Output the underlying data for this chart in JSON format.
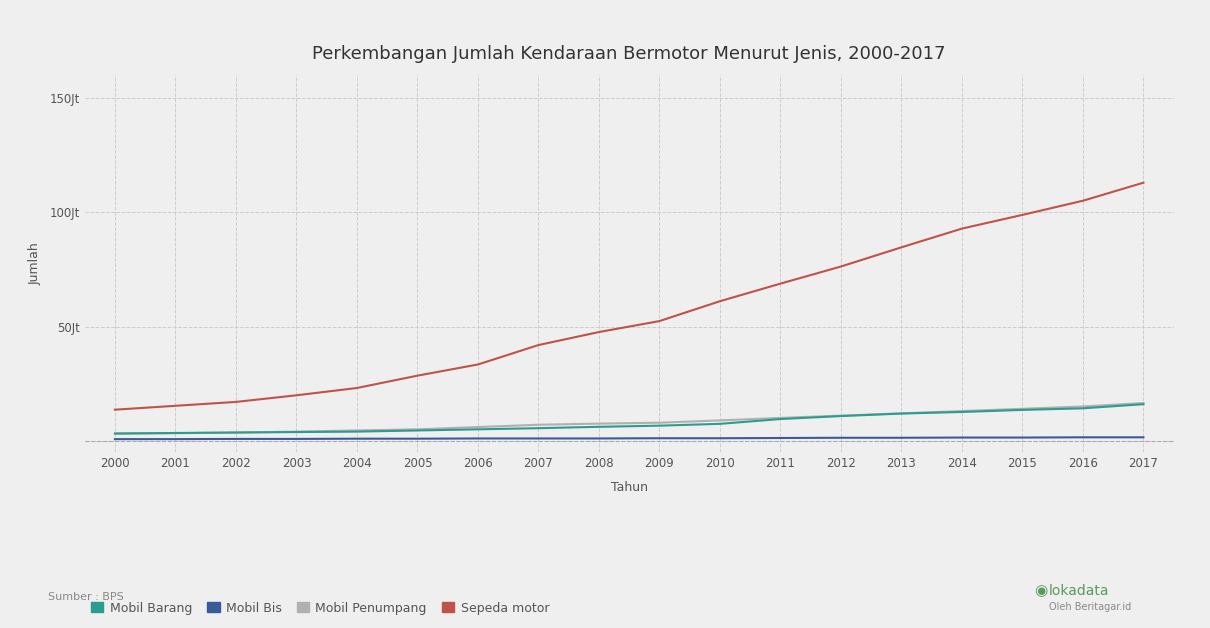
{
  "title": "Perkembangan Jumlah Kendaraan Bermotor Menurut Jenis, 2000-2017",
  "xlabel": "Tahun",
  "ylabel": "Jumlah",
  "source": "Sumber : BPS",
  "years": [
    2000,
    2001,
    2002,
    2003,
    2004,
    2005,
    2006,
    2007,
    2008,
    2009,
    2010,
    2011,
    2012,
    2013,
    2014,
    2015,
    2016,
    2017
  ],
  "mobil_barang": [
    3.2,
    3.4,
    3.6,
    3.8,
    4.0,
    4.5,
    5.0,
    5.5,
    6.1,
    6.6,
    7.4,
    9.5,
    10.8,
    11.9,
    12.6,
    13.5,
    14.2,
    16.0
  ],
  "mobil_bis": [
    0.7,
    0.7,
    0.8,
    0.8,
    0.9,
    0.9,
    1.0,
    1.0,
    1.0,
    1.1,
    1.1,
    1.2,
    1.3,
    1.3,
    1.4,
    1.4,
    1.5,
    1.5
  ],
  "mobil_penumpang": [
    3.0,
    3.3,
    3.6,
    4.0,
    4.5,
    5.0,
    6.0,
    7.0,
    7.5,
    7.9,
    8.9,
    10.0,
    11.0,
    12.0,
    13.0,
    14.0,
    15.0,
    16.5
  ],
  "sepeda_motor": [
    13.6,
    15.3,
    17.0,
    19.9,
    23.1,
    28.5,
    33.4,
    41.9,
    47.6,
    52.4,
    61.1,
    68.8,
    76.3,
    84.7,
    92.9,
    98.9,
    105.1,
    113.0
  ],
  "colors": {
    "mobil_barang": "#2a9d8f",
    "mobil_bis": "#3a5a9c",
    "mobil_penumpang": "#b0b0b0",
    "sepeda_motor": "#c0524a"
  },
  "ylim_min": -5,
  "ylim_max": 160,
  "yticks": [
    0,
    50,
    100,
    150
  ],
  "ytick_labels": [
    "",
    "50Jt",
    "100Jt",
    "150Jt"
  ],
  "background_color": "#efefef",
  "grid_color": "#cccccc",
  "title_fontsize": 13,
  "label_fontsize": 9,
  "tick_fontsize": 8.5,
  "legend_labels": [
    "Mobil Barang",
    "Mobil Bis",
    "Mobil Penumpang",
    "Sepeda motor"
  ],
  "watermark_color": "#5a9a5a",
  "watermark_sub_color": "#888888"
}
